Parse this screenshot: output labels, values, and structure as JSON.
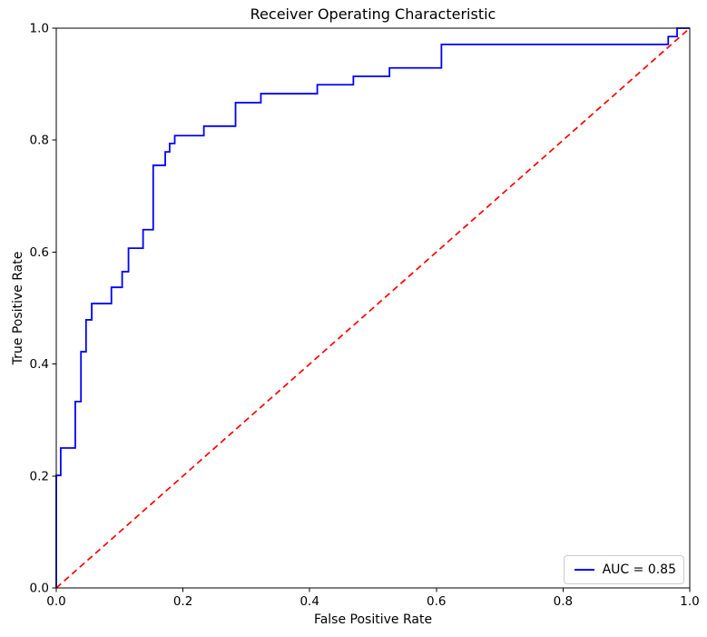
{
  "chart_data": {
    "type": "line",
    "title": "Receiver Operating Characteristic",
    "xlabel": "False Positive Rate",
    "ylabel": "True Positive Rate",
    "xlim": [
      0.0,
      1.0
    ],
    "ylim": [
      0.0,
      1.0
    ],
    "x_ticks": [
      0.0,
      0.2,
      0.4,
      0.6,
      0.8,
      1.0
    ],
    "y_ticks": [
      0.0,
      0.2,
      0.4,
      0.6,
      0.8,
      1.0
    ],
    "x_tick_labels": [
      "0.0",
      "0.2",
      "0.4",
      "0.6",
      "0.8",
      "1.0"
    ],
    "y_tick_labels": [
      "0.0",
      "0.2",
      "0.4",
      "0.6",
      "0.8",
      "1.0"
    ],
    "grid": false,
    "legend": {
      "position": "lower right",
      "entries": [
        {
          "label": "AUC = 0.85",
          "color": "#0000ff",
          "style": "solid"
        }
      ]
    },
    "series": [
      {
        "name": "roc-curve",
        "color": "#0000ff",
        "line_style": "solid",
        "line_width": 1.8,
        "auc": 0.85,
        "points": [
          [
            0.0,
            0.0
          ],
          [
            0.0,
            0.201
          ],
          [
            0.007,
            0.201
          ],
          [
            0.007,
            0.25
          ],
          [
            0.03,
            0.25
          ],
          [
            0.03,
            0.333
          ],
          [
            0.039,
            0.333
          ],
          [
            0.039,
            0.422
          ],
          [
            0.047,
            0.422
          ],
          [
            0.047,
            0.479
          ],
          [
            0.056,
            0.479
          ],
          [
            0.056,
            0.508
          ],
          [
            0.087,
            0.508
          ],
          [
            0.087,
            0.537
          ],
          [
            0.104,
            0.537
          ],
          [
            0.104,
            0.565
          ],
          [
            0.114,
            0.565
          ],
          [
            0.114,
            0.607
          ],
          [
            0.137,
            0.607
          ],
          [
            0.137,
            0.64
          ],
          [
            0.153,
            0.64
          ],
          [
            0.153,
            0.755
          ],
          [
            0.172,
            0.755
          ],
          [
            0.172,
            0.779
          ],
          [
            0.179,
            0.779
          ],
          [
            0.179,
            0.794
          ],
          [
            0.187,
            0.794
          ],
          [
            0.187,
            0.808
          ],
          [
            0.233,
            0.808
          ],
          [
            0.233,
            0.825
          ],
          [
            0.283,
            0.825
          ],
          [
            0.283,
            0.867
          ],
          [
            0.323,
            0.867
          ],
          [
            0.323,
            0.883
          ],
          [
            0.412,
            0.883
          ],
          [
            0.412,
            0.899
          ],
          [
            0.469,
            0.899
          ],
          [
            0.469,
            0.914
          ],
          [
            0.526,
            0.914
          ],
          [
            0.526,
            0.929
          ],
          [
            0.608,
            0.929
          ],
          [
            0.608,
            0.971
          ],
          [
            0.966,
            0.971
          ],
          [
            0.966,
            0.985
          ],
          [
            0.98,
            0.985
          ],
          [
            0.98,
            1.0
          ],
          [
            1.0,
            1.0
          ]
        ]
      },
      {
        "name": "chance-diagonal",
        "color": "#ff0000",
        "line_style": "dashed",
        "line_width": 1.7,
        "points": [
          [
            0.0,
            0.0
          ],
          [
            1.0,
            1.0
          ]
        ]
      }
    ]
  },
  "colors": {
    "background": "#ffffff",
    "axes": "#000000",
    "text": "#000000",
    "legend_border": "#cccccc"
  }
}
